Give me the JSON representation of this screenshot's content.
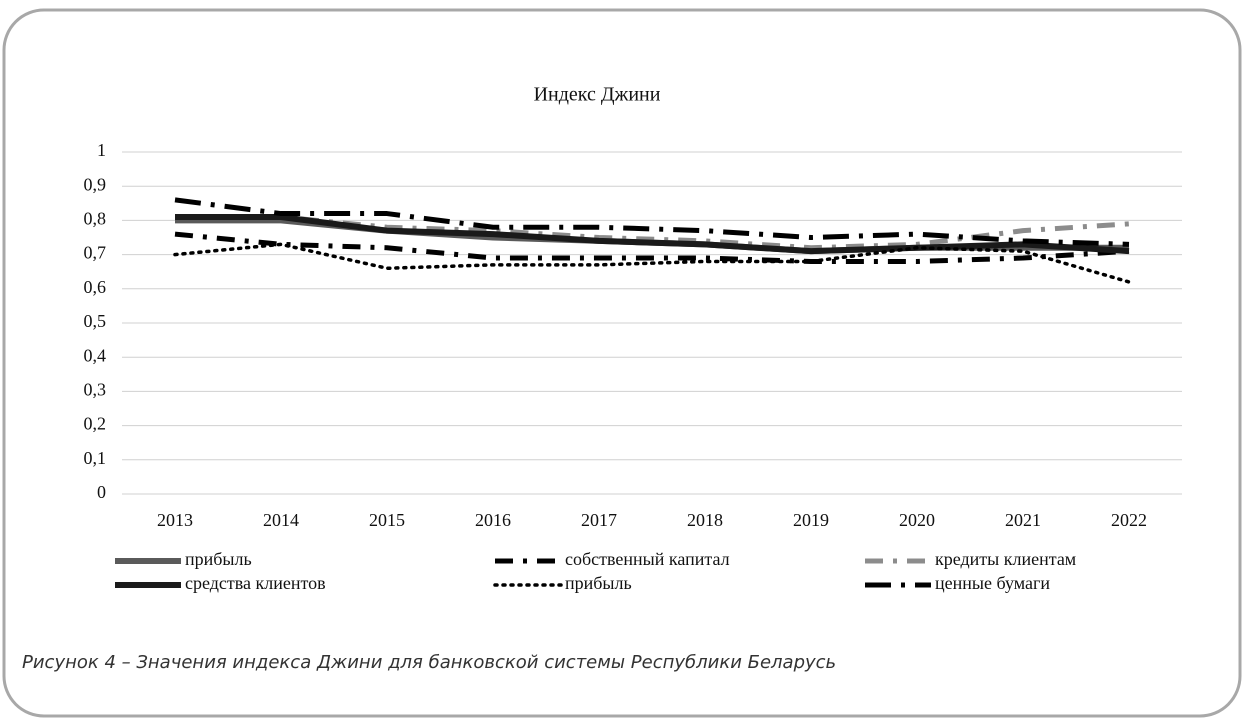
{
  "chart_data": {
    "type": "line",
    "title": "Индекс Джини",
    "categories": [
      "2013",
      "2014",
      "2015",
      "2016",
      "2017",
      "2018",
      "2019",
      "2020",
      "2021",
      "2022"
    ],
    "series": [
      {
        "name": "прибыль",
        "color": "#5a5a5a",
        "dash": "solid",
        "values": [
          0.8,
          0.8,
          0.77,
          0.75,
          0.74,
          0.73,
          0.71,
          0.72,
          0.72,
          0.72
        ]
      },
      {
        "name": "собственный капитал",
        "color": "#000000",
        "dash": "dash-dot",
        "values": [
          0.76,
          0.73,
          0.72,
          0.69,
          0.69,
          0.69,
          0.68,
          0.68,
          0.69,
          0.71
        ]
      },
      {
        "name": "кредиты клиентам",
        "color": "#8c8c8c",
        "dash": "dash-dot",
        "values": [
          0.81,
          0.81,
          0.78,
          0.77,
          0.75,
          0.74,
          0.72,
          0.73,
          0.77,
          0.79
        ]
      },
      {
        "name": "средства клиентов",
        "color": "#1a1a1a",
        "dash": "solid",
        "values": [
          0.81,
          0.81,
          0.77,
          0.76,
          0.74,
          0.73,
          0.71,
          0.72,
          0.73,
          0.71
        ]
      },
      {
        "name": "прибыль",
        "color": "#000000",
        "dash": "dot",
        "values": [
          0.7,
          0.73,
          0.66,
          0.67,
          0.67,
          0.68,
          0.68,
          0.72,
          0.71,
          0.62
        ]
      },
      {
        "name": "ценные бумаги",
        "color": "#000000",
        "dash": "long-dash-dot",
        "values": [
          0.86,
          0.82,
          0.82,
          0.78,
          0.78,
          0.77,
          0.75,
          0.76,
          0.74,
          0.73
        ]
      }
    ],
    "ylim": [
      0,
      1
    ],
    "yticks": [
      0,
      {
        "value": 0.1,
        "label": "0,1"
      },
      {
        "value": 0.2,
        "label": "0,2"
      },
      {
        "value": 0.3,
        "label": "0,3"
      },
      {
        "value": 0.4,
        "label": "0,4"
      },
      {
        "value": 0.5,
        "label": "0,5"
      },
      {
        "value": 0.6,
        "label": "0,6"
      },
      {
        "value": 0.7,
        "label": "0,7"
      },
      {
        "value": 0.8,
        "label": "0,8"
      },
      {
        "value": 0.9,
        "label": "0,9"
      },
      1
    ],
    "grid": true,
    "legend": "bottom"
  },
  "caption": "Рисунок 4 – Значения индекса Джини для банковской системы Республики Беларусь"
}
